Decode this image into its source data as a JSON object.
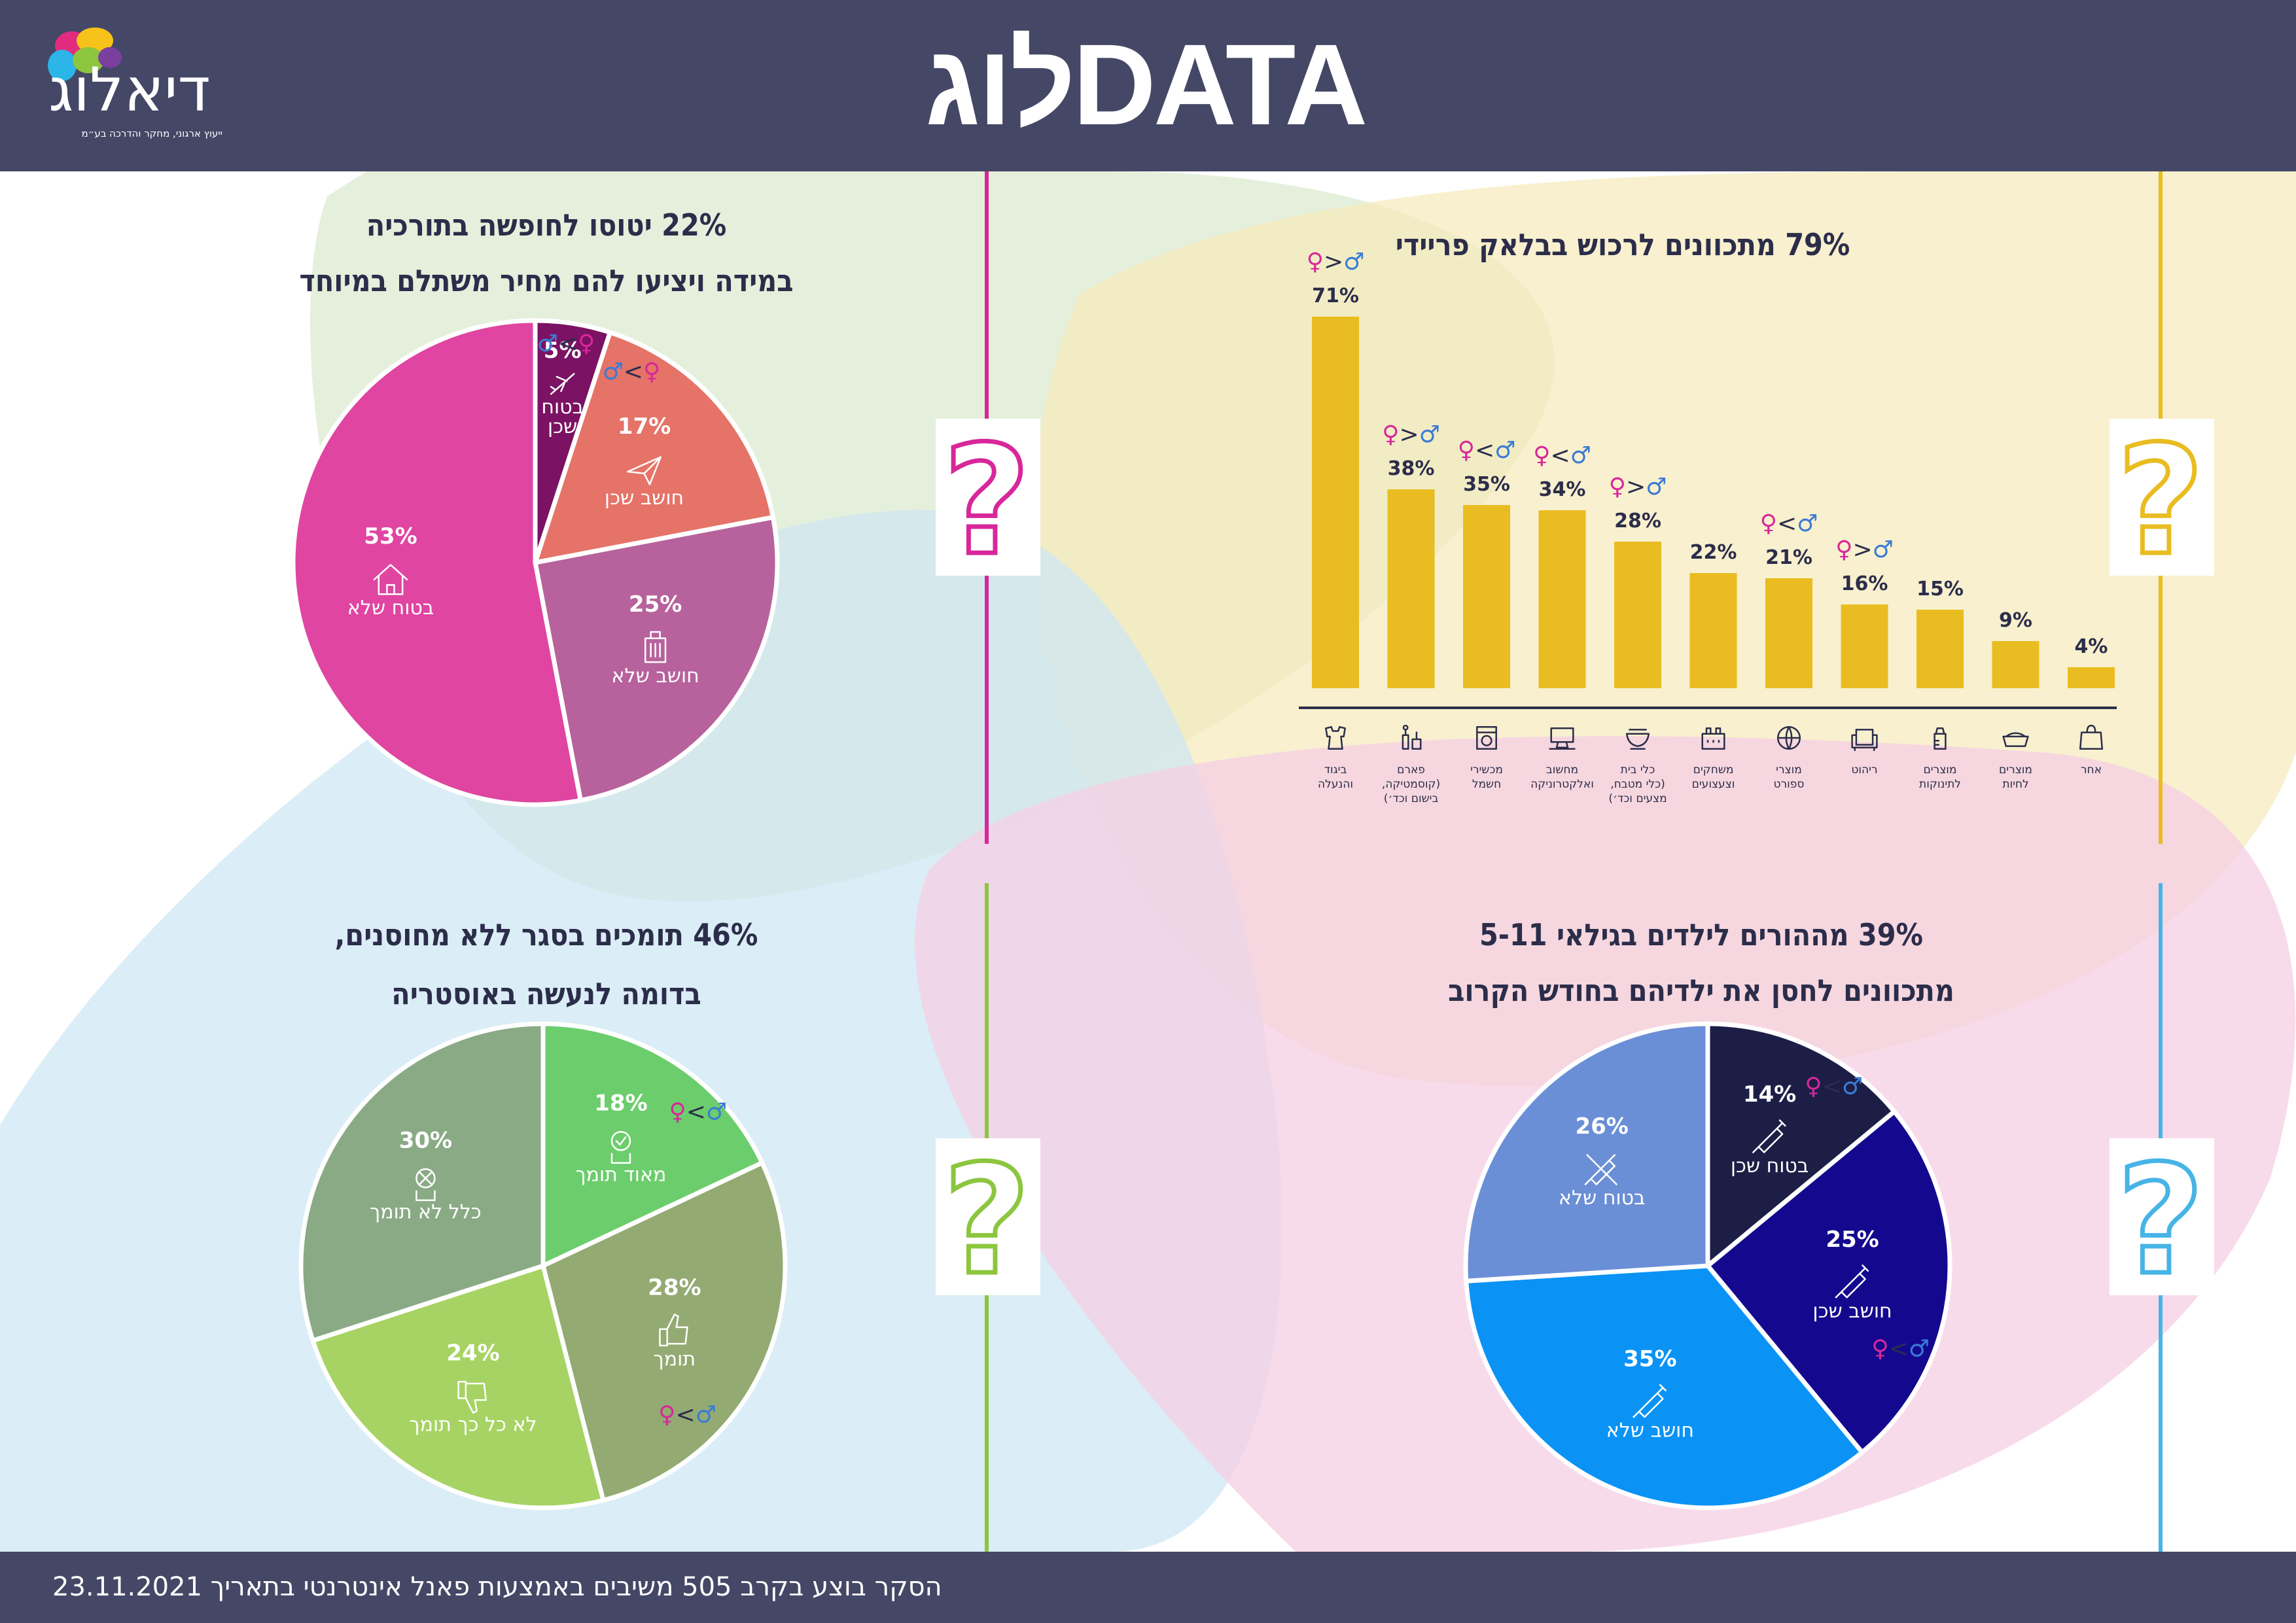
{
  "header": {
    "title": "DATAלוג"
  },
  "logo": {
    "text": "דיאלוג",
    "tagline": "ייעוץ ארגוני, מחקר והדרכה בע״מ"
  },
  "footer": {
    "text": "הסקר בוצע בקרב 505 משיבים באמצעות פאנל אינטרנטי בתאריך 23.11.2021"
  },
  "colors": {
    "header_bg": "#454766",
    "bar": "#e9bd21",
    "text_dark": "#2b2d4a"
  },
  "chart_data": [
    {
      "id": "turkey",
      "type": "pie",
      "title_lines": [
        "22% יטוסו לחופשה בתורכיה",
        "במידה ויציעו להם מחיר משתלם במיוחד"
      ],
      "slices": [
        {
          "label": "בטוח שכן",
          "label_lines": [
            "בטוח",
            "שכן"
          ],
          "value": 5,
          "pct": "5%",
          "color": "#7b1263",
          "icon": "airplane-icon",
          "gender": "♂<♀"
        },
        {
          "label": "חושב שכן",
          "value": 17,
          "pct": "17%",
          "color": "#e57368",
          "icon": "paper-plane-icon",
          "gender": "♂<♀"
        },
        {
          "label": "חושב שלא",
          "value": 25,
          "pct": "25%",
          "color": "#b7629c",
          "icon": "suitcase-icon"
        },
        {
          "label": "בטוח שלא",
          "value": 53,
          "pct": "53%",
          "color": "#e045a1",
          "icon": "house-icon"
        }
      ]
    },
    {
      "id": "black_friday",
      "type": "bar",
      "title": "79% מתכוונים לרכוש בבלאק פריידי",
      "ylim": [
        0,
        75
      ],
      "bars": [
        {
          "category": "ביגוד והנעלה",
          "label_lines": [
            "ביגוד",
            "והנעלה"
          ],
          "value": 71,
          "pct": "71%",
          "icon": "clothing-icon",
          "gender": "♀>♂"
        },
        {
          "category": "פארם (קוסמטיקה, בישום וכד׳)",
          "label_lines": [
            "פארם",
            "(קוסמטיקה,",
            "בישום וכד׳)"
          ],
          "value": 38,
          "pct": "38%",
          "icon": "cosmetics-icon",
          "gender": "♀>♂"
        },
        {
          "category": "מכשירי חשמל",
          "label_lines": [
            "מכשירי",
            "חשמל"
          ],
          "value": 35,
          "pct": "35%",
          "icon": "appliance-icon",
          "gender": "♀<♂"
        },
        {
          "category": "מחשוב ואלקטרוניקה",
          "label_lines": [
            "מחשוב",
            "ואלקטרוניקה"
          ],
          "value": 34,
          "pct": "34%",
          "icon": "computer-icon",
          "gender": "♀<♂"
        },
        {
          "category": "כלי בית (כלי מטבח, מצעים וכד׳)",
          "label_lines": [
            "כלי בית",
            "(כלי מטבח,",
            "מצעים וכד׳)"
          ],
          "value": 28,
          "pct": "28%",
          "icon": "bowls-icon",
          "gender": "♀>♂"
        },
        {
          "category": "משחקים וצעצועים",
          "label_lines": [
            "משחקים",
            "וצעצועים"
          ],
          "value": 22,
          "pct": "22%",
          "icon": "toys-icon"
        },
        {
          "category": "מוצרי ספורט",
          "label_lines": [
            "מוצרי",
            "ספורט"
          ],
          "value": 21,
          "pct": "21%",
          "icon": "ball-icon",
          "gender": "♀<♂"
        },
        {
          "category": "ריהוט",
          "label_lines": [
            "ריהוט"
          ],
          "value": 16,
          "pct": "16%",
          "icon": "sofa-icon",
          "gender": "♀>♂"
        },
        {
          "category": "מוצרים לתינוקות",
          "label_lines": [
            "מוצרים",
            "לתינוקות"
          ],
          "value": 15,
          "pct": "15%",
          "icon": "baby-bottle-icon"
        },
        {
          "category": "מוצרים לחיות",
          "label_lines": [
            "מוצרים",
            "לחיות"
          ],
          "value": 9,
          "pct": "9%",
          "icon": "pet-bowl-icon"
        },
        {
          "category": "אחר",
          "label_lines": [
            "אחר"
          ],
          "value": 4,
          "pct": "4%",
          "icon": "shopping-bag-icon"
        }
      ]
    },
    {
      "id": "lockdown",
      "type": "pie",
      "title_lines": [
        "46% תומכים בסגר ללא מחוסנים,",
        "בדומה לנעשה באוסטריה"
      ],
      "slices": [
        {
          "label": "מאוד תומך",
          "value": 18,
          "pct": "18%",
          "color": "#6ccd6c",
          "icon": "check-hand-icon",
          "gender": "♀<♂"
        },
        {
          "label": "תומך",
          "value": 28,
          "pct": "28%",
          "color": "#93aa72",
          "icon": "thumbs-up-icon",
          "gender": "♀<♂"
        },
        {
          "label": "לא כל כך תומך",
          "value": 24,
          "pct": "24%",
          "color": "#a6d363",
          "icon": "thumbs-down-icon"
        },
        {
          "label": "כלל לא תומך",
          "value": 30,
          "pct": "30%",
          "color": "#8aaa85",
          "icon": "no-hand-icon"
        }
      ]
    },
    {
      "id": "vaccine",
      "type": "pie",
      "title_lines": [
        "39% מההורים לילדים בגילאי 5-11",
        "מתכוונים לחסן את ילדיהם בחודש הקרוב"
      ],
      "slices": [
        {
          "label": "בטוח שכן",
          "value": 14,
          "pct": "14%",
          "color": "#1c1e46",
          "icon": "syringe-icon",
          "gender": "♀<♂"
        },
        {
          "label": "חושב שכן",
          "value": 25,
          "pct": "25%",
          "color": "#14098e",
          "icon": "syringe-icon",
          "gender": "♀<♂"
        },
        {
          "label": "חושב שלא",
          "value": 35,
          "pct": "35%",
          "color": "#0a93f5",
          "icon": "syringe-icon"
        },
        {
          "label": "בטוח שלא",
          "value": 26,
          "pct": "26%",
          "color": "#6b8fd6",
          "icon": "crossed-syringe-icon"
        }
      ]
    }
  ]
}
